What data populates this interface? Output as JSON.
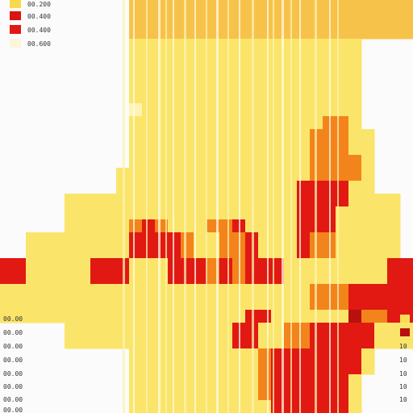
{
  "colors": {
    "background": "#fbfbfb",
    "pale": "#fff4b8",
    "yellow": "#fae56a",
    "gold": "#f7c24a",
    "orange": "#f3841b",
    "red": "#e11912",
    "darkred": "#b8100c"
  },
  "chart_data": {
    "type": "heatmap",
    "title": "",
    "xlabel": "",
    "ylabel": "",
    "legend_top_left": {
      "placement": "top-left",
      "entries": [
        {
          "label": "00.200",
          "color": "#f9d94c"
        },
        {
          "label": "00.400",
          "color": "#d9160f"
        },
        {
          "label": "00.400",
          "color": "#e11912"
        },
        {
          "label": "00.600",
          "color": "#fff4d8"
        }
      ]
    },
    "legend_bottom_right": {
      "placement": "bottom-right",
      "entries": [
        {
          "label": "",
          "color": "#f7dc55"
        },
        {
          "label": "",
          "color": "#b8100c"
        }
      ],
      "ticks": [
        "10",
        "10",
        "10",
        "10",
        "10"
      ]
    },
    "y_tick_labels": [
      "00.00",
      "00.00",
      "00.00",
      "00.00",
      "00.00",
      "00.00",
      "00.00",
      "00.00"
    ],
    "grid": {
      "cols": 32,
      "rows": 32,
      "legend": "0 empty, 1 pale, 2 yellow, 3 gold, 4 orange, 5 red, 6 dark red",
      "rows_data": [
        "00000000003333333333333333333333",
        "00000000003333333333333333333333",
        "00000000003333333333333333333333",
        "00000000002222222222222222220000",
        "00000000002222222222222222220000",
        "00000000002222222222222222220000",
        "00000000002222222222222222220000",
        "00000000002222222222222222220000",
        "00000000001222222222222222220000",
        "00000000002222222222222224420000",
        "00000000002222222222222244422000",
        "00000000002222222222222244422000",
        "00000000002222222222222244442000",
        "00000000022222222222222244442000",
        "00000000022222222222222555522000",
        "00000222222222222222222555522220",
        "00000222222222222222222555222220",
        "00000222224542224452222555222220",
        "00222222225555422445222544222220",
        "00222222225555422445222544222220",
        "55222225552225554545552222222255",
        "55222225552225554545552222222255",
        "22222222222222222222222244455555",
        "22222222222222222222222244455555",
        "22222222222222222225522222264455",
        "00000222222222222255224455555222",
        "00000222222222222255224455555222",
        "00000000002222222222455555552000",
        "00000000002222222222455555552000",
        "00000000002222222222455555520000",
        "00000000002222222222455555520000",
        "00000000002222222222255555520000"
      ]
    }
  }
}
